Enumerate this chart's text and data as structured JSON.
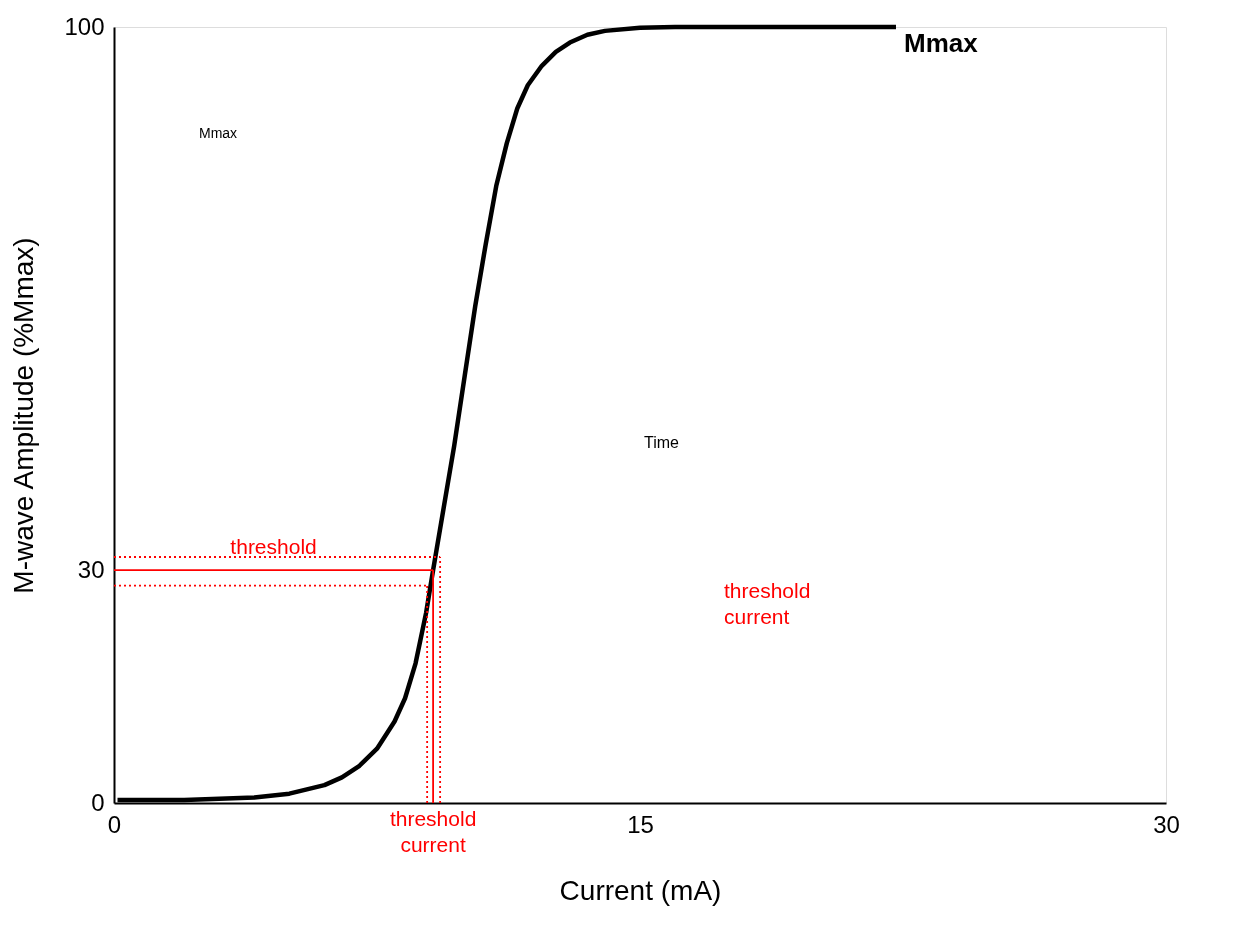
{
  "chart_data": {
    "type": "line",
    "xlabel": "Current (mA)",
    "ylabel": "M-wave Amplitude (%Mmax)",
    "xlim": [
      0,
      30
    ],
    "ylim": [
      0,
      100
    ],
    "xticks": [
      0,
      15,
      30
    ],
    "yticks": [
      0,
      30,
      100
    ],
    "grid": false,
    "marker": "none",
    "series": [
      {
        "color": "#000000",
        "line_style": "solid",
        "x": [
          0.1,
          2,
          4,
          5,
          6,
          6.5,
          7,
          7.5,
          8,
          8.3,
          8.6,
          8.9,
          9.1,
          9.4,
          9.7,
          10,
          10.3,
          10.6,
          10.9,
          11.2,
          11.5,
          11.8,
          12.2,
          12.6,
          13,
          13.5,
          14,
          15,
          16,
          18,
          20,
          22.3
        ],
        "values": [
          0.4,
          0.4,
          0.7,
          1.2,
          2.3,
          3.3,
          4.8,
          7,
          10.5,
          13.5,
          18,
          24.5,
          30,
          38,
          46,
          55,
          64,
          72,
          79.5,
          85,
          89.5,
          92.5,
          95,
          96.8,
          98,
          99,
          99.5,
          99.9,
          100,
          100,
          100,
          100
        ]
      },
      {
        "name": "threshold",
        "color": "#ff0000",
        "line_style": "solid",
        "x": [
          0,
          9.1
        ],
        "values": [
          30,
          30
        ]
      },
      {
        "name": "threshold current",
        "color": "#ff0000",
        "line_style": "solid",
        "x": [
          9.1,
          9.1
        ],
        "values": [
          0,
          30
        ]
      },
      {
        "color": "#ff0000",
        "line_style": "dotted",
        "x": [
          0,
          9.3
        ],
        "values": [
          31.7,
          31.7
        ]
      },
      {
        "color": "#ff0000",
        "line_style": "dotted",
        "x": [
          0,
          8.93
        ],
        "values": [
          28,
          28
        ]
      },
      {
        "color": "#ff0000",
        "line_style": "dotted",
        "x": [
          8.93,
          8.93
        ],
        "values": [
          0,
          28
        ]
      },
      {
        "color": "#ff0000",
        "line_style": "dotted",
        "x": [
          9.3,
          9.3
        ],
        "values": [
          0,
          31.7
        ]
      }
    ],
    "annotations": [
      "Mmax",
      "Mmax",
      "Time",
      "threshold current"
    ]
  }
}
